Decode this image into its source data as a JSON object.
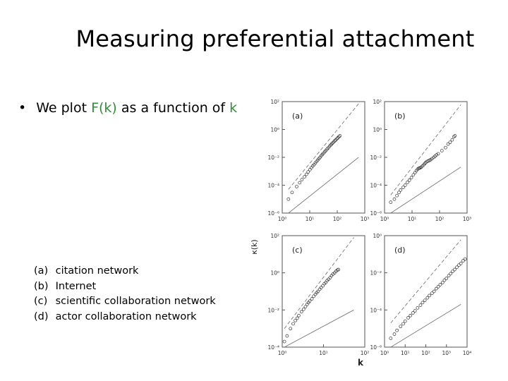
{
  "slide": {
    "title": "Measuring preferential attachment",
    "bullet": {
      "symbol": "•",
      "text_before": "We plot ",
      "f_of_k": "F(k)",
      "text_middle": " as a function of ",
      "k": "k"
    },
    "items": [
      {
        "key": "(a)",
        "text": "citation network"
      },
      {
        "key": "(b)",
        "text": "Internet"
      },
      {
        "key": "(c)",
        "text": "scientific collaboration network"
      },
      {
        "key": "(d)",
        "text": "actor collaboration network"
      }
    ],
    "accent_color": "#2f8f3a"
  },
  "chart_data": {
    "type": "scatter",
    "xlabel": "k",
    "ylabel": "κ(k)",
    "x_scale": "log",
    "y_scale": "log",
    "panels": [
      {
        "label": "(a)",
        "xlim": [
          1,
          10000
        ],
        "x_ticks": [
          "10⁰",
          "10¹",
          "10²",
          "10³"
        ],
        "ylim": [
          1e-06,
          100
        ],
        "y_ticks": [
          "10²",
          "10⁰",
          "10⁻²",
          "10⁻⁴",
          "10⁻⁶"
        ],
        "points": [
          [
            2,
            1e-05
          ],
          [
            3,
            3e-05
          ],
          [
            5,
            8e-05
          ],
          [
            7,
            0.00015
          ],
          [
            9,
            0.00025
          ],
          [
            12,
            0.0004
          ],
          [
            15,
            0.0006
          ],
          [
            18,
            0.0009
          ],
          [
            22,
            0.0013
          ],
          [
            26,
            0.0018
          ],
          [
            30,
            0.0024
          ],
          [
            35,
            0.003
          ],
          [
            40,
            0.0039
          ],
          [
            46,
            0.005
          ],
          [
            52,
            0.0063
          ],
          [
            60,
            0.008
          ],
          [
            68,
            0.01
          ],
          [
            78,
            0.013
          ],
          [
            88,
            0.016
          ],
          [
            100,
            0.02
          ],
          [
            115,
            0.025
          ],
          [
            130,
            0.031
          ],
          [
            150,
            0.039
          ],
          [
            170,
            0.048
          ],
          [
            195,
            0.06
          ],
          [
            220,
            0.075
          ],
          [
            250,
            0.09
          ],
          [
            280,
            0.11
          ],
          [
            320,
            0.13
          ],
          [
            360,
            0.16
          ],
          [
            400,
            0.18
          ],
          [
            450,
            0.22
          ],
          [
            500,
            0.25
          ],
          [
            560,
            0.3
          ],
          [
            630,
            0.35
          ]
        ],
        "reference_lines": [
          {
            "style": "dashed",
            "from": [
              2,
              5e-05
            ],
            "to": [
              5000,
              70
            ]
          },
          {
            "style": "solid",
            "from": [
              2,
              1e-06
            ],
            "to": [
              5000,
              0.01
            ]
          }
        ]
      },
      {
        "label": "(b)",
        "xlim": [
          1,
          10000
        ],
        "x_ticks": [
          "10⁰",
          "10¹",
          "10²",
          "10³"
        ],
        "ylim": [
          1e-06,
          100
        ],
        "y_ticks": [
          "10²",
          "10⁰",
          "10⁻²",
          "10⁻⁴",
          "10⁻⁶"
        ],
        "points": [
          [
            2,
            6e-06
          ],
          [
            3,
            1e-05
          ],
          [
            4,
            1.8e-05
          ],
          [
            5,
            3e-05
          ],
          [
            6,
            4.5e-05
          ],
          [
            8,
            7e-05
          ],
          [
            10,
            0.0001
          ],
          [
            13,
            0.00016
          ],
          [
            16,
            0.00023
          ],
          [
            20,
            0.00035
          ],
          [
            25,
            0.00055
          ],
          [
            30,
            0.0008
          ],
          [
            35,
            0.0011
          ],
          [
            40,
            0.0014
          ],
          [
            45,
            0.0016
          ],
          [
            50,
            0.0017
          ],
          [
            55,
            0.0018
          ],
          [
            60,
            0.002
          ],
          [
            70,
            0.0024
          ],
          [
            80,
            0.003
          ],
          [
            90,
            0.0036
          ],
          [
            100,
            0.0043
          ],
          [
            115,
            0.005
          ],
          [
            130,
            0.0055
          ],
          [
            150,
            0.006
          ],
          [
            170,
            0.0068
          ],
          [
            200,
            0.008
          ],
          [
            240,
            0.01
          ],
          [
            280,
            0.012
          ],
          [
            330,
            0.015
          ],
          [
            400,
            0.018
          ],
          [
            600,
            0.03
          ],
          [
            900,
            0.05
          ],
          [
            1200,
            0.09
          ],
          [
            1500,
            0.12
          ],
          [
            1900,
            0.18
          ],
          [
            2300,
            0.3
          ],
          [
            2600,
            0.35
          ]
        ],
        "reference_lines": [
          {
            "style": "dashed",
            "from": [
              2,
              2e-05
            ],
            "to": [
              5000,
              60
            ]
          },
          {
            "style": "solid",
            "from": [
              2,
              1e-06
            ],
            "to": [
              5000,
              0.002
            ]
          }
        ]
      },
      {
        "label": "(c)",
        "xlim": [
          1,
          1000
        ],
        "x_ticks": [
          "10⁰",
          "10¹",
          "10²"
        ],
        "ylim": [
          0.0001,
          100
        ],
        "y_ticks": [
          "10²",
          "10⁰",
          "10⁻²",
          "10⁻⁴"
        ],
        "points": [
          [
            1.2,
            0.0002
          ],
          [
            1.5,
            0.0004
          ],
          [
            2,
            0.001
          ],
          [
            2.5,
            0.0018
          ],
          [
            3,
            0.0027
          ],
          [
            3.5,
            0.0036
          ],
          [
            4,
            0.005
          ],
          [
            5,
            0.008
          ],
          [
            6,
            0.011
          ],
          [
            7,
            0.015
          ],
          [
            8,
            0.02
          ],
          [
            9,
            0.025
          ],
          [
            10,
            0.03
          ],
          [
            12,
            0.04
          ],
          [
            14,
            0.055
          ],
          [
            16,
            0.07
          ],
          [
            18,
            0.085
          ],
          [
            20,
            0.1
          ],
          [
            23,
            0.13
          ],
          [
            26,
            0.16
          ],
          [
            30,
            0.2
          ],
          [
            34,
            0.26
          ],
          [
            38,
            0.3
          ],
          [
            43,
            0.38
          ],
          [
            48,
            0.45
          ],
          [
            55,
            0.55
          ],
          [
            62,
            0.7
          ],
          [
            70,
            0.85
          ],
          [
            80,
            1
          ],
          [
            90,
            1.2
          ],
          [
            100,
            1.4
          ],
          [
            110,
            1.5
          ]
        ],
        "reference_lines": [
          {
            "style": "dashed",
            "from": [
              1.2,
              0.001
            ],
            "to": [
              400,
              80
            ]
          },
          {
            "style": "solid",
            "from": [
              1.2,
              0.0001
            ],
            "to": [
              400,
              0.01
            ]
          }
        ]
      },
      {
        "label": "(d)",
        "xlim": [
          1,
          10000
        ],
        "x_ticks": [
          "10⁰",
          "10¹",
          "10²",
          "10³",
          "10⁴"
        ],
        "ylim": [
          1e-06,
          1
        ],
        "y_ticks": [
          "10⁰",
          "10⁻²",
          "10⁻⁴",
          "10⁻⁶"
        ],
        "points": [
          [
            2,
            3e-06
          ],
          [
            3,
            5e-06
          ],
          [
            4,
            8e-06
          ],
          [
            6,
            1.3e-05
          ],
          [
            8,
            1.8e-05
          ],
          [
            10,
            2.5e-05
          ],
          [
            14,
            3.8e-05
          ],
          [
            18,
            5e-05
          ],
          [
            24,
            7e-05
          ],
          [
            30,
            9e-05
          ],
          [
            40,
            0.00013
          ],
          [
            55,
            0.00018
          ],
          [
            70,
            0.00025
          ],
          [
            90,
            0.00033
          ],
          [
            120,
            0.00045
          ],
          [
            150,
            0.0006
          ],
          [
            200,
            0.0008
          ],
          [
            250,
            0.001
          ],
          [
            320,
            0.0014
          ],
          [
            400,
            0.0018
          ],
          [
            500,
            0.0023
          ],
          [
            650,
            0.003
          ],
          [
            800,
            0.004
          ],
          [
            1000,
            0.005
          ],
          [
            1300,
            0.007
          ],
          [
            1600,
            0.009
          ],
          [
            2000,
            0.012
          ],
          [
            2500,
            0.015
          ],
          [
            3200,
            0.02
          ],
          [
            4000,
            0.026
          ],
          [
            5000,
            0.032
          ],
          [
            6500,
            0.045
          ],
          [
            8000,
            0.055
          ]
        ],
        "reference_lines": [
          {
            "style": "dashed",
            "from": [
              2,
              2e-05
            ],
            "to": [
              5000,
              0.6
            ]
          },
          {
            "style": "solid",
            "from": [
              2,
              1e-06
            ],
            "to": [
              5000,
              0.0002
            ]
          }
        ]
      }
    ]
  }
}
